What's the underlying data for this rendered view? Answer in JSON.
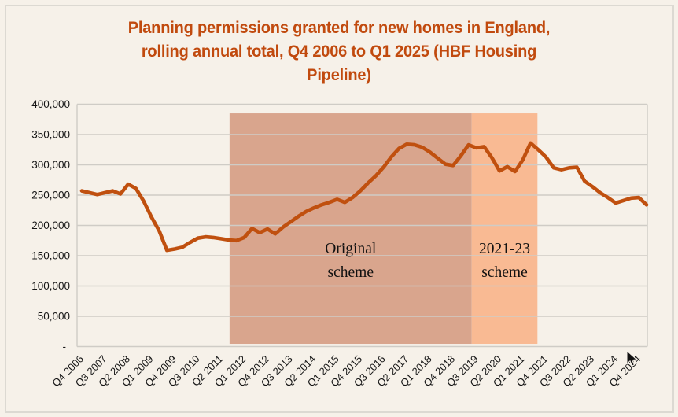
{
  "window": {
    "background": "#f6f1e9",
    "border_color": "#dcd9d2"
  },
  "chart_data": {
    "type": "line",
    "title": "Planning permissions granted for new homes in England, rolling annual total, Q4 2006 to Q1 2025 (HBF Housing Pipeline)",
    "title_lines": [
      "Planning permissions granted for new homes in England,",
      "rolling annual total, Q4 2006 to Q1 2025 (HBF Housing",
      "Pipeline)"
    ],
    "title_color": "#c14a0e",
    "line_color": "#c0500f",
    "gridline_color": "#cfccc6",
    "axis_text_color": "#161616",
    "grid": true,
    "legend": "none",
    "xlabel": "",
    "ylabel": "",
    "ylim": [
      0,
      400000
    ],
    "ytick_labels": [
      {
        "value": 0,
        "label": "-"
      },
      {
        "value": 50000,
        "label": "50,000"
      },
      {
        "value": 100000,
        "label": "100,000"
      },
      {
        "value": 150000,
        "label": "150,000"
      },
      {
        "value": 200000,
        "label": "200,000"
      },
      {
        "value": 250000,
        "label": "250,000"
      },
      {
        "value": 300000,
        "label": "300,000"
      },
      {
        "value": 350000,
        "label": "350,000"
      },
      {
        "value": 400000,
        "label": "400,000"
      }
    ],
    "xtick_every": 3,
    "categories": [
      "Q4 2006",
      "Q1 2007",
      "Q2 2007",
      "Q3 2007",
      "Q4 2007",
      "Q1 2008",
      "Q2 2008",
      "Q3 2008",
      "Q4 2008",
      "Q1 2009",
      "Q2 2009",
      "Q3 2009",
      "Q4 2009",
      "Q1 2010",
      "Q2 2010",
      "Q3 2010",
      "Q4 2010",
      "Q1 2011",
      "Q2 2011",
      "Q3 2011",
      "Q4 2011",
      "Q1 2012",
      "Q2 2012",
      "Q3 2012",
      "Q4 2012",
      "Q1 2013",
      "Q2 2013",
      "Q3 2013",
      "Q4 2013",
      "Q1 2014",
      "Q2 2014",
      "Q3 2014",
      "Q4 2014",
      "Q1 2015",
      "Q2 2015",
      "Q3 2015",
      "Q4 2015",
      "Q1 2016",
      "Q2 2016",
      "Q3 2016",
      "Q4 2016",
      "Q1 2017",
      "Q2 2017",
      "Q3 2017",
      "Q4 2017",
      "Q1 2018",
      "Q2 2018",
      "Q3 2018",
      "Q4 2018",
      "Q1 2019",
      "Q2 2019",
      "Q3 2019",
      "Q4 2019",
      "Q1 2020",
      "Q2 2020",
      "Q3 2020",
      "Q4 2020",
      "Q1 2021",
      "Q2 2021",
      "Q3 2021",
      "Q4 2021",
      "Q1 2022",
      "Q2 2022",
      "Q3 2022",
      "Q4 2022",
      "Q1 2023",
      "Q2 2023",
      "Q3 2023",
      "Q4 2023",
      "Q1 2024",
      "Q2 2024",
      "Q3 2024",
      "Q4 2024",
      "Q1 2025"
    ],
    "values": [
      257000,
      254000,
      251000,
      254000,
      257000,
      252000,
      268000,
      261000,
      240000,
      214000,
      191000,
      159000,
      161000,
      164000,
      172000,
      179000,
      181000,
      180000,
      178000,
      176000,
      175000,
      180000,
      195000,
      188000,
      194000,
      186000,
      197000,
      206000,
      215000,
      223000,
      229000,
      234000,
      238000,
      243000,
      238000,
      246000,
      257000,
      270000,
      282000,
      296000,
      313000,
      327000,
      334000,
      333000,
      329000,
      321000,
      311000,
      301000,
      299000,
      315000,
      333000,
      328000,
      330000,
      312000,
      290000,
      297000,
      289000,
      308000,
      336000,
      325000,
      313000,
      295000,
      292000,
      295000,
      296000,
      273000,
      264000,
      254000,
      246000,
      237000,
      241000,
      245000,
      246000,
      234000
    ],
    "regions": [
      {
        "label_lines": [
          "Original",
          "scheme"
        ],
        "from_index": 19.1,
        "to_index": 50.4,
        "fill": "#d9a58d",
        "value_top": 385000,
        "value_bottom": 4500,
        "label_color": "#111111"
      },
      {
        "label_lines": [
          "2021-23",
          "scheme"
        ],
        "from_index": 50.4,
        "to_index": 58.9,
        "fill": "#f9ba93",
        "value_top": 385000,
        "value_bottom": 4500,
        "label_color": "#111111"
      }
    ]
  }
}
